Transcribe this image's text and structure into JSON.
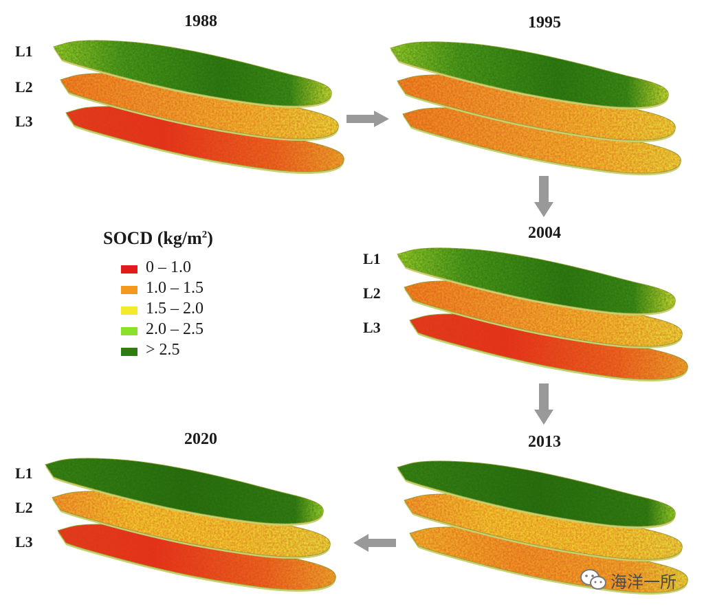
{
  "years": {
    "p1988": "1988",
    "p1995": "1995",
    "p2004": "2004",
    "p2013": "2013",
    "p2020": "2020"
  },
  "layers": {
    "l1": "L1",
    "l2": "L2",
    "l3": "L3"
  },
  "legend": {
    "title": "SOCD (kg/m",
    "title_sup": "2",
    "title_close": ")",
    "items": [
      {
        "label": "0 – 1.0",
        "color": "#e31a1c"
      },
      {
        "label": "1.0 – 1.5",
        "color": "#f39a1e"
      },
      {
        "label": "1.5 – 2.0",
        "color": "#f2ea2a"
      },
      {
        "label": "2.0 – 2.5",
        "color": "#8be02a"
      },
      {
        "label": "> 2.5",
        "color": "#2f7d12"
      }
    ]
  },
  "panels": {
    "p1988": {
      "L1": "mixed-green",
      "L2": "orange-yellow",
      "L3": "red-orange"
    },
    "p1995": {
      "L1": "mixed-green",
      "L2": "orange-yellow",
      "L3": "orange-yellow"
    },
    "p2004": {
      "L1": "mixed-green",
      "L2": "orange-yellow",
      "L3": "red-orange"
    },
    "p2013": {
      "L1": "dark-green",
      "L2": "yellow",
      "L3": "yellow-orange"
    },
    "p2020": {
      "L1": "dark-green",
      "L2": "yellow",
      "L3": "red-orange"
    }
  },
  "arrows": [
    "right",
    "down",
    "down",
    "left"
  ],
  "watermark": {
    "text": "海洋一所",
    "icon": "wechat-icon"
  }
}
